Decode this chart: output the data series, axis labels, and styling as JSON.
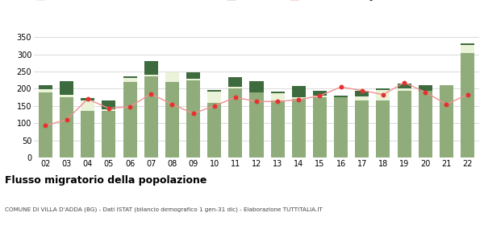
{
  "years": [
    "02",
    "03",
    "04",
    "05",
    "06",
    "07",
    "08",
    "09",
    "10",
    "11",
    "12",
    "13",
    "14",
    "15",
    "16",
    "17",
    "18",
    "19",
    "20",
    "21",
    "22"
  ],
  "iscritti_altri_comuni": [
    190,
    175,
    135,
    135,
    220,
    235,
    220,
    225,
    160,
    200,
    190,
    165,
    170,
    175,
    175,
    165,
    165,
    195,
    195,
    210,
    305
  ],
  "iscritti_estero": [
    8,
    8,
    32,
    5,
    12,
    5,
    28,
    5,
    32,
    5,
    0,
    22,
    5,
    5,
    0,
    12,
    32,
    5,
    0,
    0,
    22
  ],
  "iscritti_altri": [
    12,
    38,
    5,
    25,
    5,
    40,
    0,
    18,
    5,
    28,
    32,
    5,
    32,
    15,
    5,
    18,
    5,
    15,
    15,
    0,
    5
  ],
  "cancellati": [
    93,
    110,
    170,
    143,
    148,
    185,
    155,
    128,
    150,
    175,
    163,
    163,
    168,
    180,
    205,
    195,
    183,
    218,
    190,
    155,
    183
  ],
  "color_altri_comuni": "#8fac7a",
  "color_estero": "#eaf2d8",
  "color_altri": "#3d6b3e",
  "color_cancellati": "#e83030",
  "color_line_cancellati": "#f09090",
  "ylim": [
    0,
    360
  ],
  "yticks": [
    0,
    50,
    100,
    150,
    200,
    250,
    300,
    350
  ],
  "title": "Flusso migratorio della popolazione",
  "subtitle": "COMUNE DI VILLA D'ADDA (BG) - Dati ISTAT (bilancio demografico 1 gen-31 dic) - Elaborazione TUTTITALIA.IT",
  "background_color": "#ffffff",
  "grid_color": "#cccccc"
}
